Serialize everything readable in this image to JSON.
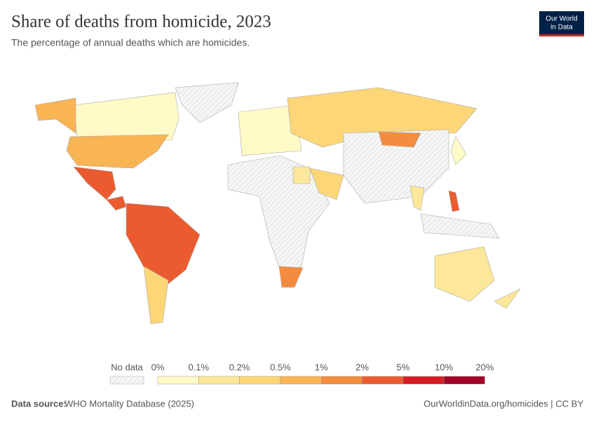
{
  "header": {
    "title": "Share of deaths from homicide, 2023",
    "subtitle": "The percentage of annual deaths which are homicides.",
    "logo": [
      "Our World",
      "in Data"
    ]
  },
  "legend": {
    "no_data": "No data",
    "edges": [
      "0%",
      "0.1%",
      "0.2%",
      "0.5%",
      "1%",
      "2%",
      "5%",
      "10%",
      "20%"
    ],
    "colors": [
      "#fffac6",
      "#fde79a",
      "#fcd677",
      "#f9b454",
      "#f48c3f",
      "#ec5b30",
      "#d51e24",
      "#a50026"
    ]
  },
  "footer": {
    "source_label": "Data source:",
    "source": "WHO Mortality Database (2025)",
    "link": "OurWorldinData.org/homicides | CC BY"
  }
}
